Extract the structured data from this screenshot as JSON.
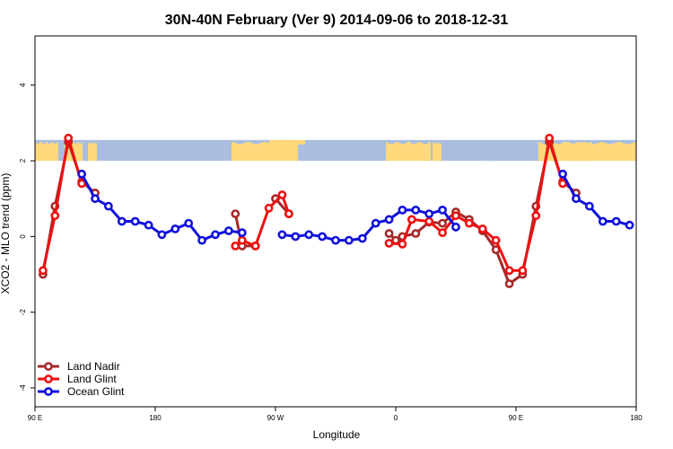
{
  "chart_data": {
    "type": "line",
    "title": "30N-40N February (Ver 9)   2014-09-06 to 2018-12-31",
    "xlabel": "Longitude",
    "ylabel": "XCO2 - MLO trend (ppm)",
    "xlim": [
      90,
      540
    ],
    "ylim": [
      -4.5,
      5.3
    ],
    "xticks": [
      {
        "value": 90,
        "label": "90 E"
      },
      {
        "value": 180,
        "label": "180"
      },
      {
        "value": 270,
        "label": "90 W"
      },
      {
        "value": 360,
        "label": "0"
      },
      {
        "value": 450,
        "label": "90 E"
      },
      {
        "value": 540,
        "label": "180"
      }
    ],
    "yticks": [
      {
        "value": -4,
        "label": "-4"
      },
      {
        "value": -2,
        "label": "-2"
      },
      {
        "value": 0,
        "label": "0"
      },
      {
        "value": 2,
        "label": "2"
      },
      {
        "value": 4,
        "label": "4"
      }
    ],
    "map_band": {
      "ymin": 2.0,
      "ymax": 2.55,
      "ocean_color": "#a9bedf",
      "land_color": "#ffd97a"
    },
    "legend": {
      "position": "bottom-left"
    },
    "series": [
      {
        "name": "Land Nadir",
        "color": "#a52a2a",
        "segments": [
          [
            [
              96,
              -1.0
            ],
            [
              105,
              0.8
            ],
            [
              115,
              2.5
            ],
            [
              125,
              1.45
            ],
            [
              135,
              1.15
            ]
          ],
          [
            [
              240,
              0.6
            ],
            [
              245,
              -0.25
            ],
            [
              255,
              -0.25
            ]
          ],
          [
            [
              270,
              1.0
            ],
            [
              280,
              0.6
            ]
          ],
          [
            [
              355,
              0.08
            ],
            [
              360,
              -0.1
            ],
            [
              365,
              0.0
            ],
            [
              375,
              0.08
            ],
            [
              385,
              0.38
            ],
            [
              395,
              0.35
            ],
            [
              405,
              0.65
            ],
            [
              415,
              0.45
            ],
            [
              425,
              0.15
            ],
            [
              435,
              -0.35
            ],
            [
              445,
              -1.25
            ],
            [
              455,
              -1.0
            ],
            [
              465,
              0.8
            ],
            [
              475,
              2.5
            ],
            [
              485,
              1.45
            ],
            [
              495,
              1.15
            ]
          ]
        ]
      },
      {
        "name": "Land Glint",
        "color": "#ee1111",
        "segments": [
          [
            [
              96,
              -0.9
            ],
            [
              105,
              0.55
            ],
            [
              115,
              2.6
            ],
            [
              125,
              1.4
            ]
          ],
          [
            [
              240,
              -0.25
            ],
            [
              245,
              -0.1
            ],
            [
              255,
              -0.25
            ],
            [
              265,
              0.75
            ],
            [
              275,
              1.1
            ],
            [
              280,
              0.6
            ]
          ],
          [
            [
              355,
              -0.18
            ],
            [
              365,
              -0.2
            ],
            [
              372,
              0.45
            ],
            [
              385,
              0.4
            ],
            [
              395,
              0.1
            ],
            [
              405,
              0.55
            ],
            [
              415,
              0.35
            ],
            [
              425,
              0.2
            ],
            [
              435,
              -0.1
            ],
            [
              445,
              -0.9
            ],
            [
              455,
              -0.9
            ],
            [
              465,
              0.55
            ],
            [
              475,
              2.6
            ],
            [
              485,
              1.4
            ]
          ]
        ]
      },
      {
        "name": "Ocean Glint",
        "color": "#1111dd",
        "segments": [
          [
            [
              125,
              1.65
            ],
            [
              135,
              1.0
            ],
            [
              145,
              0.8
            ],
            [
              155,
              0.4
            ],
            [
              165,
              0.4
            ],
            [
              175,
              0.3
            ],
            [
              185,
              0.05
            ],
            [
              195,
              0.2
            ],
            [
              205,
              0.35
            ],
            [
              215,
              -0.1
            ],
            [
              225,
              0.05
            ],
            [
              235,
              0.15
            ],
            [
              245,
              0.1
            ]
          ],
          [
            [
              275,
              0.05
            ],
            [
              285,
              0.0
            ],
            [
              295,
              0.05
            ],
            [
              305,
              0.0
            ],
            [
              315,
              -0.1
            ],
            [
              325,
              -0.1
            ],
            [
              335,
              -0.05
            ],
            [
              345,
              0.35
            ],
            [
              355,
              0.45
            ],
            [
              365,
              0.7
            ],
            [
              375,
              0.7
            ],
            [
              385,
              0.6
            ],
            [
              395,
              0.7
            ],
            [
              405,
              0.25
            ]
          ],
          [
            [
              485,
              1.65
            ],
            [
              495,
              1.0
            ],
            [
              505,
              0.8
            ],
            [
              515,
              0.4
            ],
            [
              525,
              0.4
            ],
            [
              535,
              0.3
            ]
          ]
        ]
      }
    ]
  }
}
